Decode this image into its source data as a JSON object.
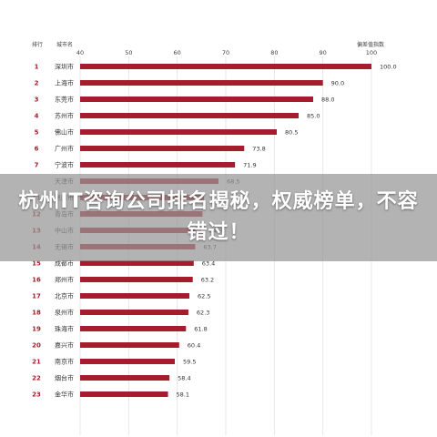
{
  "overlay": {
    "title": "杭州IT咨询公司排名揭秘，权威榜单，不容错过！"
  },
  "chart_data": {
    "type": "bar",
    "orientation": "horizontal",
    "header_rank": "排行",
    "header_city": "城市名",
    "header_value": "偏差值指数",
    "xlim": [
      40,
      100
    ],
    "xticks": [
      40,
      50,
      60,
      70,
      80,
      90,
      100
    ],
    "grid": true,
    "colors": {
      "bar": "#a51d2d",
      "text": "#333333",
      "rank": "#a51d2d",
      "grid": "#e2e2e2"
    },
    "rows": [
      {
        "rank": "1",
        "city": "深圳市",
        "value": 100.0,
        "label": "100.0"
      },
      {
        "rank": "2",
        "city": "上海市",
        "value": 90.0,
        "label": "90.0"
      },
      {
        "rank": "3",
        "city": "东莞市",
        "value": 88.0,
        "label": "88.0"
      },
      {
        "rank": "4",
        "city": "苏州市",
        "value": 85.0,
        "label": "85.0"
      },
      {
        "rank": "5",
        "city": "佛山市",
        "value": 80.5,
        "label": "80.5"
      },
      {
        "rank": "6",
        "city": "广州市",
        "value": 73.8,
        "label": "73.8"
      },
      {
        "rank": "7",
        "city": "宁波市",
        "value": 71.9,
        "label": "71.9"
      },
      {
        "rank": "",
        "city": "天津市",
        "value": 68.5,
        "label": "68.5"
      },
      {
        "rank": "11",
        "city": "惠州市",
        "value": 65.5,
        "label": ""
      },
      {
        "rank": "12",
        "city": "青岛市",
        "value": 65.2,
        "label": ""
      },
      {
        "rank": "13",
        "city": "中山市",
        "value": 64.9,
        "label": "64.9"
      },
      {
        "rank": "14",
        "city": "无锡市",
        "value": 63.7,
        "label": "63.7"
      },
      {
        "rank": "15",
        "city": "成都市",
        "value": 63.4,
        "label": "63.4"
      },
      {
        "rank": "16",
        "city": "郑州市",
        "value": 63.2,
        "label": "63.2"
      },
      {
        "rank": "17",
        "city": "北京市",
        "value": 62.5,
        "label": "62.5"
      },
      {
        "rank": "18",
        "city": "泉州市",
        "value": 62.3,
        "label": "62.3"
      },
      {
        "rank": "19",
        "city": "珠海市",
        "value": 61.8,
        "label": "61.8"
      },
      {
        "rank": "20",
        "city": "嘉兴市",
        "value": 60.4,
        "label": "60.4"
      },
      {
        "rank": "21",
        "city": "南京市",
        "value": 59.5,
        "label": "59.5"
      },
      {
        "rank": "22",
        "city": "烟台市",
        "value": 58.4,
        "label": "58.4"
      },
      {
        "rank": "23",
        "city": "金华市",
        "value": 58.1,
        "label": "58.1"
      }
    ]
  }
}
